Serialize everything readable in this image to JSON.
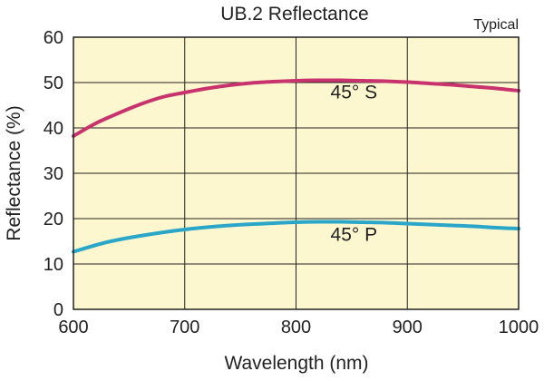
{
  "chart_data": {
    "type": "line",
    "title": "UB.2 Reflectance",
    "subtitle": "Typical",
    "xlabel": "Wavelength (nm)",
    "ylabel": "Reflectance (%)",
    "xlim": [
      600,
      1000
    ],
    "ylim": [
      0,
      60
    ],
    "xticks": [
      600,
      700,
      800,
      900,
      1000
    ],
    "yticks": [
      0,
      10,
      20,
      30,
      40,
      50,
      60
    ],
    "grid": true,
    "colors": {
      "plot_bg": "#fdf7cf",
      "grid": "#222222",
      "s_line": "#c8336e",
      "p_line": "#2aa6c8"
    },
    "series": [
      {
        "name": "45° S",
        "color": "#c8336e",
        "x": [
          600,
          620,
          640,
          660,
          680,
          700,
          720,
          740,
          760,
          780,
          800,
          820,
          840,
          860,
          880,
          900,
          920,
          940,
          960,
          980,
          1000
        ],
        "y": [
          38.2,
          41.0,
          43.2,
          45.2,
          46.8,
          47.8,
          48.7,
          49.4,
          49.9,
          50.2,
          50.4,
          50.5,
          50.5,
          50.4,
          50.3,
          50.1,
          49.8,
          49.5,
          49.1,
          48.7,
          48.2
        ]
      },
      {
        "name": "45° P",
        "color": "#2aa6c8",
        "x": [
          600,
          630,
          660,
          700,
          740,
          780,
          800,
          820,
          840,
          860,
          880,
          900,
          920,
          940,
          960,
          980,
          1000
        ],
        "y": [
          12.7,
          14.8,
          16.2,
          17.6,
          18.5,
          19.0,
          19.2,
          19.3,
          19.3,
          19.2,
          19.1,
          18.9,
          18.7,
          18.5,
          18.3,
          18.0,
          17.8
        ]
      }
    ],
    "annotations": [
      {
        "text": "45° S",
        "x": 852,
        "y": 46.5
      },
      {
        "text": "45° P",
        "x": 852,
        "y": 15.1
      }
    ]
  }
}
